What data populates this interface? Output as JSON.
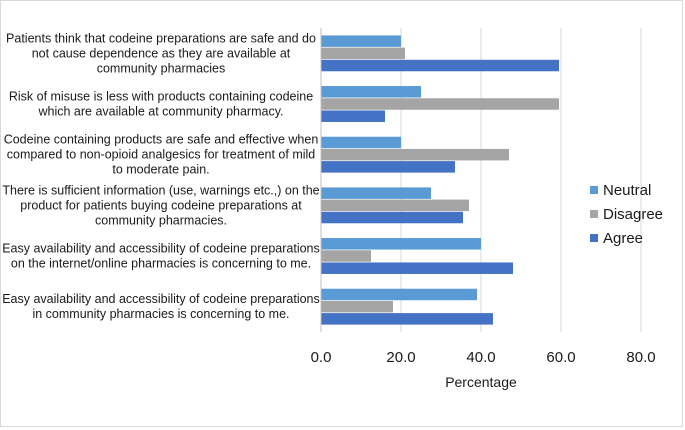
{
  "chart_data": {
    "type": "bar",
    "orientation": "horizontal",
    "title": "",
    "xlabel": "Percentage",
    "ylabel": "",
    "xlim": [
      0,
      80
    ],
    "xticks": [
      0,
      20,
      40,
      60,
      80
    ],
    "xtick_labels": [
      "0.0",
      "20.0",
      "40.0",
      "60.0",
      "80.0"
    ],
    "grid": true,
    "legend_position": "right",
    "categories": [
      [
        "Patients think that codeine preparations are safe and do",
        "not cause dependence as they are available at",
        "community pharmacies"
      ],
      [
        "Risk of misuse is less with products containing codeine",
        "which are available at community pharmacy."
      ],
      [
        "Codeine containing products are safe and effective when",
        "compared to non-opioid analgesics for treatment of mild",
        "to moderate pain."
      ],
      [
        "There is sufficient information (use, warnings etc.,) on the",
        "product for patients buying codeine preparations at",
        "community pharmacies."
      ],
      [
        "Easy availability and accessibility of codeine preparations",
        "on the internet/online pharmacies is concerning to me."
      ],
      [
        "Easy availability and accessibility of codeine preparations",
        "in community pharmacies is concerning to me."
      ]
    ],
    "series": [
      {
        "name": "Neutral",
        "color": "#5b9bd5",
        "values": [
          20,
          25,
          20,
          27.5,
          40,
          39
        ]
      },
      {
        "name": "Disagree",
        "color": "#a5a5a5",
        "values": [
          21,
          59.5,
          47,
          37,
          12.5,
          18
        ]
      },
      {
        "name": "Agree",
        "color": "#4472c4",
        "values": [
          59.5,
          16,
          33.5,
          35.5,
          48,
          43
        ]
      }
    ]
  }
}
